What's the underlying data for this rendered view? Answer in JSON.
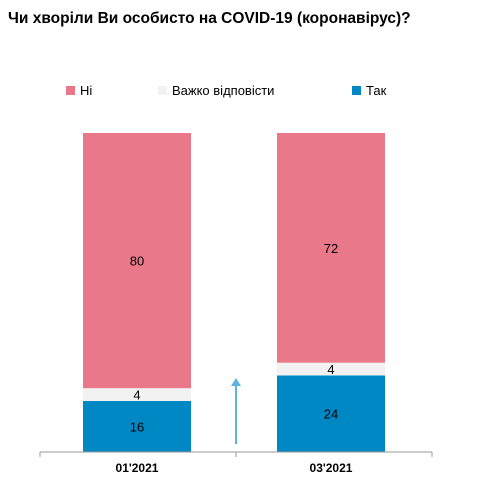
{
  "chart_data": {
    "type": "bar",
    "stacked": true,
    "normalized": true,
    "title": "Чи хворіли Ви особисто на COVID-19 (коронавірус)?",
    "categories": [
      "01'2021",
      "03'2021"
    ],
    "series": [
      {
        "name": "Так",
        "color": "#0088c4",
        "values": [
          16,
          24
        ]
      },
      {
        "name": "Важко відповісти",
        "color": "#f2f2f2",
        "values": [
          4,
          4
        ]
      },
      {
        "name": "Ні",
        "color": "#e9798a",
        "values": [
          80,
          72
        ]
      }
    ],
    "ylim": [
      0,
      100
    ],
    "grid": false,
    "legend_position": "top",
    "legend_order": [
      "Ні",
      "Важко відповісти",
      "Так"
    ],
    "annotation": {
      "type": "arrow-up",
      "color": "#5fb2e2"
    }
  }
}
